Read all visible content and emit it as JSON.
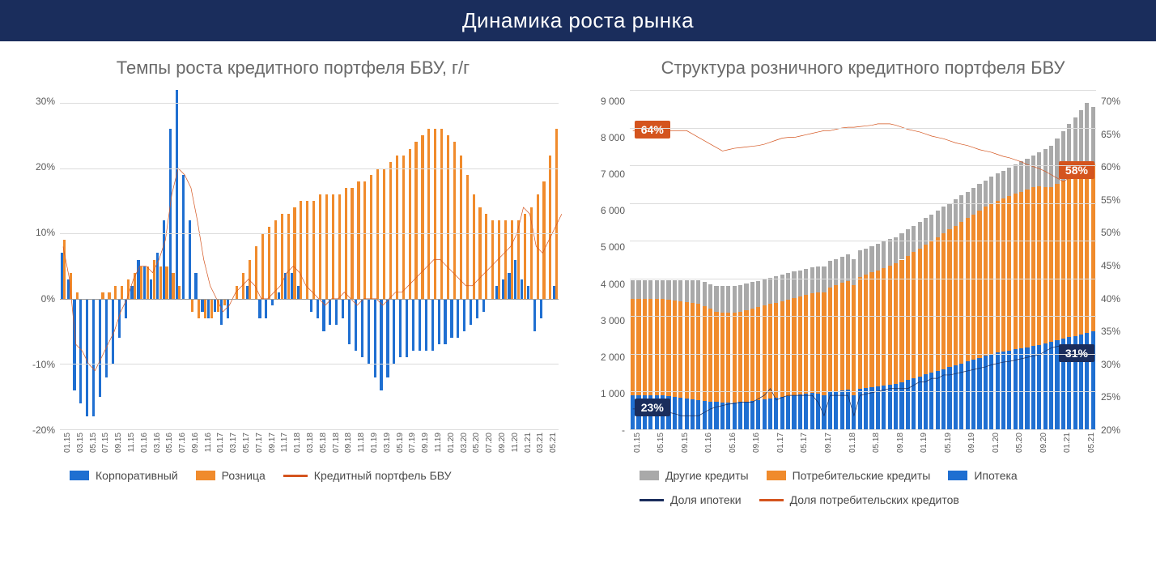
{
  "header": {
    "title": "Динамика роста рынка"
  },
  "colors": {
    "header_bg": "#1a2d5c",
    "title_text": "#6a6a6a",
    "grid": "#dcdcdc",
    "axis_text": "#5a5a5a",
    "corporate": "#1f6fd1",
    "retail": "#f08b2c",
    "portfolio_line": "#d4541e",
    "other_credits": "#a9a9a9",
    "consumer_credits": "#f08b2c",
    "mortgage": "#1f6fd1",
    "mortgage_share_line": "#1a2d5c",
    "consumer_share_line": "#d4541e"
  },
  "chart_left": {
    "title": "Темпы роста кредитного портфеля БВУ, г/г",
    "type": "bar+line",
    "ylim": [
      -20,
      32
    ],
    "yticks": [
      -20,
      -10,
      0,
      10,
      20,
      30
    ],
    "ytick_labels": [
      "-20%",
      "-10%",
      "0%",
      "10%",
      "20%",
      "30%"
    ],
    "x_labels": [
      "01.15",
      "03.15",
      "05.15",
      "07.15",
      "09.15",
      "11.15",
      "01.16",
      "03.16",
      "05.16",
      "07.16",
      "09.16",
      "11.16",
      "01.17",
      "03.17",
      "05.17",
      "07.17",
      "09.17",
      "11.17",
      "01.18",
      "03.18",
      "05.18",
      "07.18",
      "09.18",
      "11.18",
      "01.19",
      "03.19",
      "05.19",
      "07.19",
      "09.19",
      "11.19",
      "01.20",
      "03.20",
      "05.20",
      "07.20",
      "09.20",
      "11.20",
      "01.21",
      "03.21",
      "05.21"
    ],
    "corporate": [
      7,
      3,
      -14,
      -16,
      -18,
      -18,
      -15,
      -12,
      -10,
      -6,
      -3,
      2,
      6,
      5,
      3,
      7,
      12,
      26,
      32,
      19,
      12,
      4,
      -2,
      -3,
      -2,
      -4,
      -3,
      0,
      0,
      2,
      0,
      -3,
      -3,
      -1,
      1,
      4,
      4,
      2,
      0,
      -2,
      -3,
      -5,
      -4,
      -4,
      -3,
      -7,
      -8,
      -9,
      -10,
      -12,
      -14,
      -12,
      -10,
      -9,
      -9,
      -8,
      -8,
      -8,
      -8,
      -7,
      -7,
      -6,
      -6,
      -5,
      -4,
      -3,
      -2,
      0,
      2,
      3,
      4,
      6,
      3,
      2,
      -5,
      -3,
      0,
      2
    ],
    "retail": [
      9,
      4,
      1,
      0,
      0,
      0,
      1,
      1,
      2,
      2,
      3,
      4,
      5,
      5,
      6,
      5,
      5,
      4,
      2,
      0,
      -2,
      -3,
      -3,
      -3,
      -2,
      -1,
      0,
      2,
      4,
      6,
      8,
      10,
      11,
      12,
      13,
      13,
      14,
      15,
      15,
      15,
      16,
      16,
      16,
      16,
      17,
      17,
      18,
      18,
      19,
      20,
      20,
      21,
      22,
      22,
      23,
      24,
      25,
      26,
      26,
      26,
      25,
      24,
      22,
      19,
      16,
      14,
      13,
      12,
      12,
      12,
      12,
      12,
      13,
      14,
      16,
      18,
      22,
      26
    ],
    "portfolio_line": [
      8,
      3,
      -7,
      -8,
      -10,
      -11,
      -9,
      -7,
      -5,
      -2,
      0,
      3,
      5,
      5,
      4,
      6,
      9,
      16,
      20,
      19,
      17,
      12,
      6,
      2,
      0,
      -2,
      -1,
      1,
      2,
      3,
      2,
      0,
      0,
      1,
      2,
      4,
      5,
      4,
      2,
      1,
      0,
      -1,
      0,
      0,
      1,
      0,
      -1,
      0,
      0,
      0,
      -1,
      0,
      1,
      1,
      2,
      3,
      4,
      5,
      6,
      6,
      5,
      4,
      3,
      2,
      2,
      3,
      4,
      5,
      6,
      7,
      8,
      10,
      14,
      13,
      8,
      7,
      9,
      11,
      13
    ],
    "legend": {
      "corporate": "Корпоративный",
      "retail": "Розница",
      "portfolio": "Кредитный портфель БВУ"
    }
  },
  "chart_right": {
    "title": "Структура розничного кредитного портфеля БВУ",
    "type": "stacked-bar+2lines",
    "ylim_left": [
      0,
      9000
    ],
    "yticks_left": [
      0,
      1000,
      2000,
      3000,
      4000,
      5000,
      6000,
      7000,
      8000,
      9000
    ],
    "ytick_labels_left": [
      "-",
      "1 000",
      "2 000",
      "3 000",
      "4 000",
      "5 000",
      "6 000",
      "7 000",
      "8 000",
      "9 000"
    ],
    "ylim_right": [
      20,
      70
    ],
    "yticks_right": [
      20,
      25,
      30,
      35,
      40,
      45,
      50,
      55,
      60,
      65,
      70
    ],
    "ytick_labels_right": [
      "20%",
      "25%",
      "30%",
      "35%",
      "40%",
      "45%",
      "50%",
      "55%",
      "60%",
      "65%",
      "70%"
    ],
    "x_labels": [
      "01.15",
      "05.15",
      "09.15",
      "01.16",
      "05.16",
      "09.16",
      "01.17",
      "05.17",
      "09.17",
      "01.18",
      "05.18",
      "09.18",
      "01.19",
      "05.19",
      "09.19",
      "01.20",
      "05.20",
      "09.20",
      "01.21",
      "05.21"
    ],
    "n_points": 78,
    "mortgage": [
      900,
      900,
      900,
      900,
      900,
      900,
      880,
      860,
      840,
      820,
      800,
      780,
      760,
      740,
      720,
      700,
      700,
      700,
      720,
      740,
      760,
      780,
      800,
      820,
      840,
      860,
      880,
      900,
      920,
      940,
      960,
      940,
      900,
      1000,
      1020,
      1040,
      1060,
      900,
      1080,
      1100,
      1120,
      1140,
      1160,
      1180,
      1200,
      1250,
      1300,
      1350,
      1400,
      1450,
      1500,
      1550,
      1600,
      1650,
      1700,
      1750,
      1800,
      1850,
      1900,
      1950,
      2000,
      2030,
      2060,
      2090,
      2120,
      2150,
      2180,
      2210,
      2240,
      2280,
      2320,
      2360,
      2400,
      2440,
      2480,
      2520,
      2560,
      2600
    ],
    "consumer": [
      2550,
      2550,
      2550,
      2550,
      2550,
      2550,
      2550,
      2550,
      2550,
      2550,
      2550,
      2550,
      2500,
      2450,
      2400,
      2400,
      2400,
      2400,
      2400,
      2420,
      2440,
      2460,
      2480,
      2500,
      2520,
      2540,
      2560,
      2580,
      2600,
      2620,
      2640,
      2680,
      2720,
      2760,
      2800,
      2840,
      2880,
      2920,
      2960,
      3000,
      3040,
      3080,
      3120,
      3160,
      3200,
      3250,
      3300,
      3350,
      3400,
      3450,
      3500,
      3550,
      3600,
      3650,
      3700,
      3750,
      3800,
      3850,
      3900,
      3950,
      4000,
      4030,
      4060,
      4090,
      4120,
      4150,
      4180,
      4210,
      4200,
      4150,
      4100,
      4150,
      4200,
      4250,
      4300,
      4350,
      4400,
      4450
    ],
    "other": [
      500,
      500,
      500,
      500,
      500,
      500,
      520,
      540,
      560,
      580,
      600,
      620,
      640,
      660,
      680,
      700,
      700,
      700,
      700,
      700,
      700,
      700,
      700,
      700,
      700,
      700,
      700,
      700,
      700,
      700,
      700,
      700,
      700,
      700,
      700,
      700,
      700,
      700,
      700,
      700,
      700,
      700,
      700,
      700,
      700,
      700,
      700,
      700,
      700,
      700,
      700,
      700,
      700,
      700,
      700,
      700,
      700,
      700,
      700,
      700,
      700,
      720,
      740,
      760,
      780,
      800,
      820,
      840,
      900,
      1000,
      1100,
      1200,
      1300,
      1400,
      1500,
      1600,
      1700,
      1500
    ],
    "mortgage_share": [
      23,
      23,
      23,
      23,
      23,
      23,
      22.5,
      22.3,
      22,
      22,
      22,
      22,
      22.5,
      23,
      23.3,
      23.5,
      23.7,
      23.8,
      24,
      24,
      24,
      24.5,
      25,
      26,
      24.3,
      24.7,
      25,
      25,
      25,
      25,
      25,
      24,
      22,
      25,
      25,
      25,
      25,
      22,
      25,
      25.2,
      25.4,
      25.6,
      25.8,
      26,
      26,
      26,
      26,
      26.5,
      27,
      27,
      27.5,
      27.5,
      28,
      28,
      28.2,
      28.4,
      28.6,
      28.8,
      29,
      29.2,
      29.5,
      29.7,
      29.9,
      30,
      30.2,
      30.4,
      30.6,
      30.8,
      31,
      31.5,
      32,
      32.2,
      32.4,
      32.5,
      32.3,
      31.8,
      31.4,
      31
    ],
    "consumer_share": [
      64,
      64,
      64,
      64,
      64,
      64,
      64,
      64,
      64,
      64,
      63.5,
      63,
      62.5,
      62,
      61.5,
      61,
      61.2,
      61.4,
      61.5,
      61.6,
      61.7,
      61.8,
      62,
      62.3,
      62.6,
      62.9,
      63,
      63,
      63.2,
      63.4,
      63.6,
      63.8,
      64,
      64,
      64.2,
      64.4,
      64.5,
      64.5,
      64.6,
      64.7,
      64.8,
      65,
      65,
      65,
      64.8,
      64.5,
      64.2,
      64,
      63.8,
      63.5,
      63.2,
      63,
      62.8,
      62.5,
      62.2,
      62,
      61.8,
      61.5,
      61.2,
      61,
      60.8,
      60.5,
      60.2,
      60,
      59.7,
      59.4,
      59,
      58.7,
      58.4,
      58,
      57.5,
      57,
      56.5,
      57,
      57.5,
      58,
      58,
      58
    ],
    "callouts": {
      "consumer_start": "64%",
      "consumer_end": "58%",
      "mortgage_start": "23%",
      "mortgage_end": "31%"
    },
    "legend": {
      "other": "Другие кредиты",
      "consumer": "Потребительские кредиты",
      "mortgage": "Ипотека",
      "mortgage_share": "Доля ипотеки",
      "consumer_share": "Доля потребительских кредитов"
    }
  }
}
